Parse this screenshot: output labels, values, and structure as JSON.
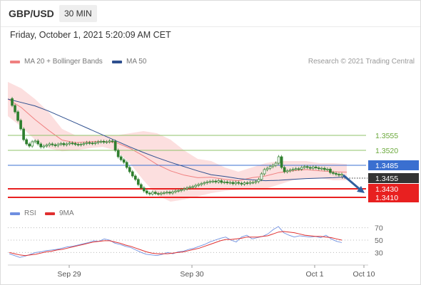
{
  "header": {
    "symbol": "GBP/USD",
    "interval": "30 MIN",
    "datetime": "Friday, October 1, 2021 5:20:09 AM CET"
  },
  "legend": {
    "ma20": "MA 20 + Bollinger Bands",
    "ma50": "MA 50",
    "copyright": "Research © 2021 Trading Central",
    "rsi": "RSI",
    "ma9": "9MA"
  },
  "colors": {
    "bollinger": "#f5a3a3",
    "ma50": "#2e4f8f",
    "green_level": "#8fc36a",
    "blue_level": "#3a6fd0",
    "red_level": "#e82020",
    "candle": "#2f7f2f",
    "arrow": "#2f5f9f",
    "rsi": "#6f8fe0",
    "rsi_ma": "#e03030",
    "current": "#333333"
  },
  "chart_data": [
    {
      "type": "line",
      "title": "",
      "xlabel": "",
      "ylabel": "",
      "x_ticks": [
        "Sep 29",
        "Sep 30",
        "Oct 1",
        "Oct 10"
      ],
      "ylim": [
        1.3395,
        1.371
      ],
      "price_labels": {
        "r2": "1.3555",
        "r1": "1.3520",
        "pivot": "1.3485",
        "current": "1.3455",
        "s1": "1.3430",
        "s2": "1.3410"
      },
      "levels": [
        {
          "key": "r2",
          "value": 1.3555,
          "style": "green"
        },
        {
          "key": "r1",
          "value": 1.352,
          "style": "green"
        },
        {
          "key": "pivot",
          "value": 1.3485,
          "style": "blue"
        },
        {
          "key": "s1",
          "value": 1.343,
          "style": "red"
        },
        {
          "key": "s2",
          "value": 1.341,
          "style": "red"
        }
      ],
      "close_series": [
        1.3641,
        1.3625,
        1.361,
        1.359,
        1.357,
        1.3545,
        1.3535,
        1.353,
        1.354,
        1.3542,
        1.3535,
        1.3528,
        1.353,
        1.3532,
        1.3535,
        1.3533,
        1.3531,
        1.3534,
        1.3536,
        1.3533,
        1.3535,
        1.3537,
        1.3536,
        1.3534,
        1.3533,
        1.3534,
        1.3536,
        1.3538,
        1.3537,
        1.3536,
        1.3538,
        1.354,
        1.3541,
        1.3539,
        1.354,
        1.3542,
        1.3541,
        1.352,
        1.3505,
        1.3498,
        1.3492,
        1.348,
        1.347,
        1.346,
        1.3452,
        1.344,
        1.3432,
        1.3425,
        1.342,
        1.3418,
        1.3422,
        1.3419,
        1.3418,
        1.342,
        1.3421,
        1.3422,
        1.342,
        1.3423,
        1.3425,
        1.3426,
        1.3428,
        1.343,
        1.3432,
        1.3434,
        1.3435,
        1.3438,
        1.344,
        1.3442,
        1.3444,
        1.3446,
        1.3447,
        1.3448,
        1.3446,
        1.3449,
        1.3445,
        1.3446,
        1.3444,
        1.3445,
        1.3442,
        1.3445,
        1.3443,
        1.3441,
        1.3444,
        1.3443,
        1.3445,
        1.3445,
        1.3447,
        1.3452,
        1.3465,
        1.3475,
        1.3478,
        1.3482,
        1.3485,
        1.349,
        1.3505,
        1.348,
        1.347,
        1.3472,
        1.3474,
        1.3476,
        1.3477,
        1.3476,
        1.348,
        1.3482,
        1.348,
        1.3478,
        1.3481,
        1.3479,
        1.3477,
        1.3478,
        1.3475,
        1.3476,
        1.3468,
        1.3466,
        1.3464,
        1.3462,
        1.3464
      ],
      "ma50_series": [
        1.364,
        1.3632,
        1.3624,
        1.3612,
        1.3598,
        1.3584,
        1.357,
        1.3556,
        1.3542,
        1.3528,
        1.3515,
        1.3503,
        1.3492,
        1.3482,
        1.3472,
        1.3463,
        1.3459,
        1.3454,
        1.3451,
        1.3449,
        1.345,
        1.3452,
        1.3454,
        1.3455,
        1.3456,
        1.3458
      ],
      "bb_upper": [
        1.368,
        1.3665,
        1.364,
        1.361,
        1.357,
        1.3555,
        1.3555,
        1.3555,
        1.3555,
        1.356,
        1.3565,
        1.356,
        1.3545,
        1.352,
        1.35,
        1.3495,
        1.348,
        1.347,
        1.348,
        1.349,
        1.3495,
        1.3495,
        1.3495,
        1.349,
        1.349,
        1.3488
      ],
      "bb_lower": [
        1.36,
        1.3575,
        1.3545,
        1.3525,
        1.3518,
        1.352,
        1.3525,
        1.3528,
        1.352,
        1.349,
        1.345,
        1.3415,
        1.34,
        1.3405,
        1.3412,
        1.342,
        1.3425,
        1.3428,
        1.3432,
        1.343,
        1.344,
        1.345,
        1.3455,
        1.3455,
        1.345,
        1.345
      ],
      "bb_mid": [
        1.364,
        1.362,
        1.3592,
        1.3567,
        1.3544,
        1.3538,
        1.354,
        1.3541,
        1.3538,
        1.3525,
        1.3507,
        1.3487,
        1.3472,
        1.3462,
        1.3456,
        1.3457,
        1.3452,
        1.3449,
        1.3456,
        1.346,
        1.3468,
        1.3472,
        1.3475,
        1.3472,
        1.347,
        1.3469
      ],
      "forecast": {
        "from": 1.3462,
        "to": 1.342
      }
    },
    {
      "type": "line",
      "title": "",
      "ylim": [
        20,
        80
      ],
      "y_ticks": [
        "70",
        "50",
        "30"
      ],
      "rsi_series": [
        28,
        25,
        22,
        24,
        27,
        30,
        31,
        33,
        34,
        35,
        37,
        39,
        40,
        42,
        44,
        46,
        49,
        48,
        52,
        50,
        45,
        43,
        40,
        38,
        34,
        30,
        27,
        26,
        25,
        27,
        30,
        28,
        31,
        32,
        35,
        37,
        40,
        43,
        47,
        50,
        53,
        55,
        50,
        47,
        55,
        58,
        52,
        54,
        56,
        60,
        67,
        72,
        62,
        58,
        55,
        57,
        56,
        55,
        56,
        54,
        58,
        52,
        48,
        46
      ],
      "ma9_series": [
        30,
        28,
        26,
        25,
        26,
        27,
        29,
        31,
        32,
        34,
        35,
        37,
        39,
        41,
        43,
        45,
        47,
        48,
        49,
        49,
        47,
        45,
        42,
        40,
        37,
        34,
        31,
        29,
        28,
        28,
        28,
        29,
        30,
        31,
        33,
        35,
        37,
        40,
        43,
        46,
        49,
        51,
        51,
        52,
        53,
        55,
        55,
        55,
        56,
        57,
        60,
        63,
        64,
        63,
        62,
        60,
        58,
        57,
        56,
        56,
        55,
        54,
        52,
        50
      ]
    }
  ]
}
